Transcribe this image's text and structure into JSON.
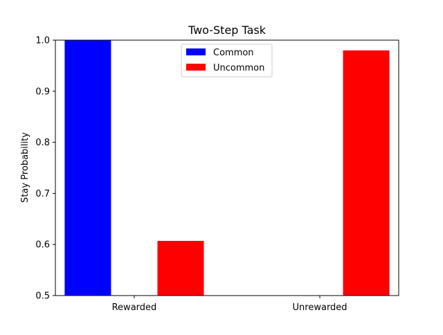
{
  "chart_data": {
    "type": "bar",
    "title": "Two-Step Task",
    "xlabel": "",
    "ylabel": "Stay Probability",
    "categories": [
      "Rewarded",
      "Unrewarded"
    ],
    "series": [
      {
        "name": "Common",
        "values": [
          1.0,
          null
        ],
        "color": "#0000ff"
      },
      {
        "name": "Uncommon",
        "values": [
          0.607,
          0.98
        ],
        "color": "#ff0000"
      }
    ],
    "ylim": [
      0.5,
      1.0
    ],
    "yticks": [
      "0.5",
      "0.6",
      "0.7",
      "0.8",
      "0.9",
      "1.0"
    ],
    "grid": false,
    "legend_position": "top-center"
  }
}
